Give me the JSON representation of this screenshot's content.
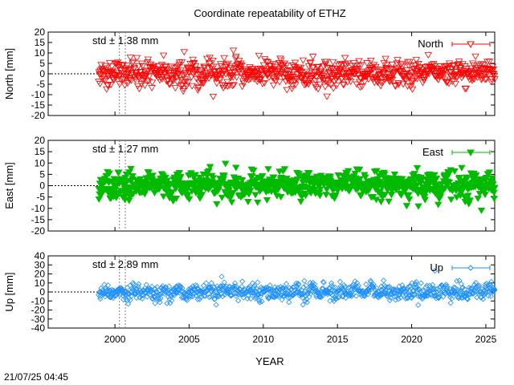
{
  "title": "Coordinate repeatability of ETHZ",
  "xlabel": "YEAR",
  "timestamp": "21/07/25 04:45",
  "chart_data": [
    {
      "type": "scatter",
      "series": [
        {
          "name": "North",
          "color": "#ff0000",
          "marker": "triangle-down-open",
          "std_mm": 1.38,
          "spread_mm": 3.0,
          "x_start": 1998.9,
          "x_end": 2025.6
        }
      ],
      "ylabel": "North [mm]",
      "std_label": "std ± 1.38 mm",
      "ylim": [
        -20,
        20
      ],
      "yticks": [
        -20,
        -15,
        -10,
        -5,
        0,
        5,
        10,
        15,
        20
      ],
      "xlim": [
        1995.5,
        2025.6
      ],
      "xticks": [
        2000,
        2005,
        2010,
        2015,
        2020,
        2025
      ],
      "vlines": [
        2000.3,
        2000.7
      ],
      "zero_line_to": 1998.9
    },
    {
      "type": "scatter",
      "series": [
        {
          "name": "East",
          "color": "#00bb00",
          "marker": "triangle-down-filled",
          "std_mm": 1.27,
          "spread_mm": 2.8,
          "x_start": 1998.9,
          "x_end": 2025.6
        }
      ],
      "ylabel": "East [mm]",
      "std_label": "std ± 1.27 mm",
      "ylim": [
        -20,
        20
      ],
      "yticks": [
        -20,
        -15,
        -10,
        -5,
        0,
        5,
        10,
        15,
        20
      ],
      "xlim": [
        1995.5,
        2025.6
      ],
      "xticks": [
        2000,
        2005,
        2010,
        2015,
        2020,
        2025
      ],
      "vlines": [
        2000.3,
        2000.7
      ],
      "zero_line_to": 1998.9
    },
    {
      "type": "scatter",
      "series": [
        {
          "name": "Up",
          "color": "#1e90ff",
          "marker": "diamond-open",
          "std_mm": 2.89,
          "spread_mm": 4.5,
          "x_start": 1998.9,
          "x_end": 2025.6
        }
      ],
      "ylabel": "Up [mm]",
      "std_label": "std ± 2.89 mm",
      "ylim": [
        -40,
        40
      ],
      "yticks": [
        -40,
        -30,
        -20,
        -10,
        0,
        10,
        20,
        30,
        40
      ],
      "xlim": [
        1995.5,
        2025.6
      ],
      "xticks": [
        2000,
        2005,
        2010,
        2015,
        2020,
        2025
      ],
      "vlines": [
        2000.3,
        2000.7
      ],
      "zero_line_to": 1998.9
    }
  ]
}
